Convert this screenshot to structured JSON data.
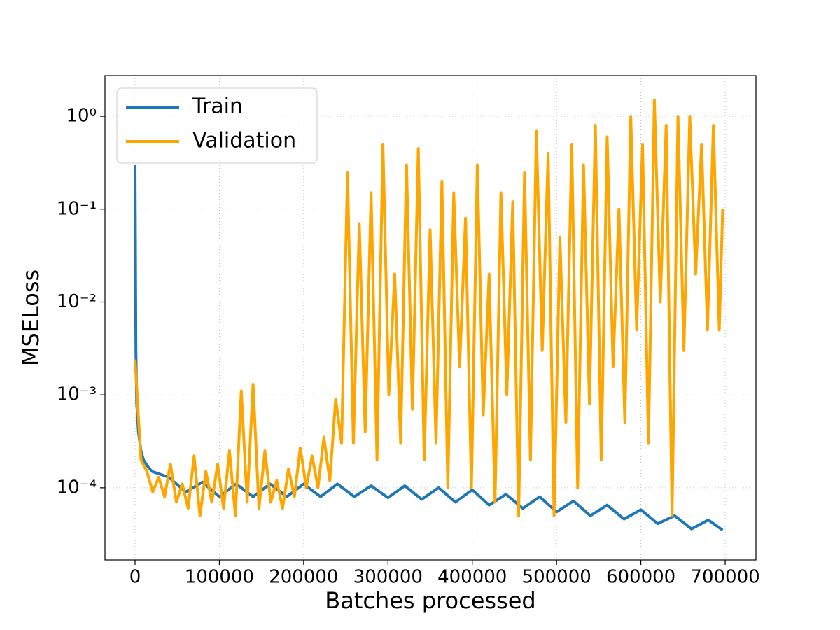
{
  "chart_data": {
    "type": "line",
    "xlabel": "Batches processed",
    "ylabel": "MSELoss",
    "log_y": true,
    "grid": true,
    "legend": "upper left",
    "xlim": [
      -35700,
      736500
    ],
    "ylim": [
      1.67e-05,
      2.74
    ],
    "xticks": [
      0,
      100000,
      200000,
      300000,
      400000,
      500000,
      600000,
      700000
    ],
    "yticks": [
      {
        "value": 0.0001,
        "label": "10⁻⁴"
      },
      {
        "value": 0.001,
        "label": "10⁻³"
      },
      {
        "value": 0.01,
        "label": "10⁻²"
      },
      {
        "value": 0.1,
        "label": "10⁻¹"
      },
      {
        "value": 1,
        "label": "10⁰"
      }
    ],
    "series": [
      {
        "name": "Train",
        "color": "#1f77b4",
        "x": [
          0,
          1000,
          2000,
          4000,
          7000,
          10000,
          15000,
          20000,
          40000,
          60000,
          80000,
          100000,
          120000,
          140000,
          160000,
          180000,
          200000,
          220000,
          240000,
          260000,
          280000,
          300000,
          320000,
          340000,
          360000,
          380000,
          400000,
          420000,
          440000,
          460000,
          480000,
          500000,
          520000,
          540000,
          560000,
          580000,
          600000,
          620000,
          640000,
          660000,
          680000,
          697000
        ],
        "values": [
          0.3,
          0.003,
          0.0008,
          0.0004,
          0.00025,
          0.0002,
          0.00017,
          0.00015,
          0.00013,
          9e-05,
          0.000115,
          8e-05,
          0.00011,
          8e-05,
          0.00011,
          8e-05,
          0.00011,
          8e-05,
          0.00011,
          8e-05,
          0.000105,
          7.8e-05,
          0.000105,
          7.5e-05,
          0.0001,
          7e-05,
          9.5e-05,
          6.5e-05,
          8.5e-05,
          6e-05,
          8e-05,
          5.5e-05,
          7.2e-05,
          5e-05,
          6.5e-05,
          4.6e-05,
          5.8e-05,
          4.1e-05,
          5e-05,
          3.6e-05,
          4.5e-05,
          3.5e-05
        ]
      },
      {
        "name": "Validation",
        "color": "#ffa500",
        "x": [
          0,
          7000,
          14000,
          21000,
          28000,
          35000,
          42000,
          49000,
          56000,
          63000,
          70000,
          77000,
          84000,
          91000,
          98000,
          105000,
          112000,
          119000,
          126000,
          133000,
          140000,
          147000,
          154000,
          161000,
          168000,
          175000,
          182000,
          189000,
          196000,
          203000,
          210000,
          217000,
          224000,
          231000,
          238000,
          245000,
          252000,
          259000,
          266000,
          273000,
          280000,
          287000,
          294000,
          301000,
          308000,
          315000,
          322000,
          329000,
          336000,
          343000,
          350000,
          357000,
          364000,
          371000,
          378000,
          385000,
          392000,
          399000,
          406000,
          413000,
          420000,
          427000,
          434000,
          441000,
          448000,
          455000,
          462000,
          469000,
          476000,
          483000,
          490000,
          497000,
          504000,
          511000,
          518000,
          525000,
          532000,
          539000,
          546000,
          553000,
          560000,
          567000,
          574000,
          581000,
          588000,
          595000,
          602000,
          609000,
          616000,
          623000,
          630000,
          637000,
          644000,
          651000,
          658000,
          665000,
          672000,
          679000,
          686000,
          693000,
          697000
        ],
        "values": [
          0.0024,
          0.0002,
          0.00015,
          9e-05,
          0.00013,
          8e-05,
          0.00018,
          7e-05,
          0.00011,
          6e-05,
          0.00022,
          5e-05,
          0.00015,
          7e-05,
          0.00018,
          6e-05,
          0.00025,
          5e-05,
          0.0011,
          7e-05,
          0.0013,
          6e-05,
          0.00025,
          7e-05,
          0.00012,
          6e-05,
          0.00016,
          8e-05,
          0.00027,
          0.0001,
          0.00022,
          0.0001,
          0.00035,
          0.00012,
          0.0009,
          0.0003,
          0.25,
          0.0003,
          0.07,
          0.0004,
          0.15,
          0.0002,
          0.5,
          0.001,
          0.02,
          0.0003,
          0.3,
          0.0007,
          0.45,
          0.0002,
          0.06,
          0.0003,
          0.2,
          0.0001,
          0.15,
          0.002,
          0.08,
          0.0001,
          0.3,
          0.0006,
          0.02,
          7e-05,
          0.15,
          0.001,
          0.12,
          5e-05,
          0.25,
          0.0002,
          0.7,
          0.003,
          0.4,
          5e-05,
          0.05,
          0.0005,
          0.5,
          0.0001,
          0.3,
          0.0008,
          0.8,
          0.0002,
          0.6,
          0.002,
          0.1,
          0.0005,
          1.0,
          0.005,
          0.5,
          0.0003,
          1.5,
          0.01,
          0.8,
          5e-05,
          1.0,
          0.003,
          1.0,
          0.02,
          0.5,
          0.005,
          0.8,
          0.005,
          0.1
        ]
      }
    ]
  }
}
